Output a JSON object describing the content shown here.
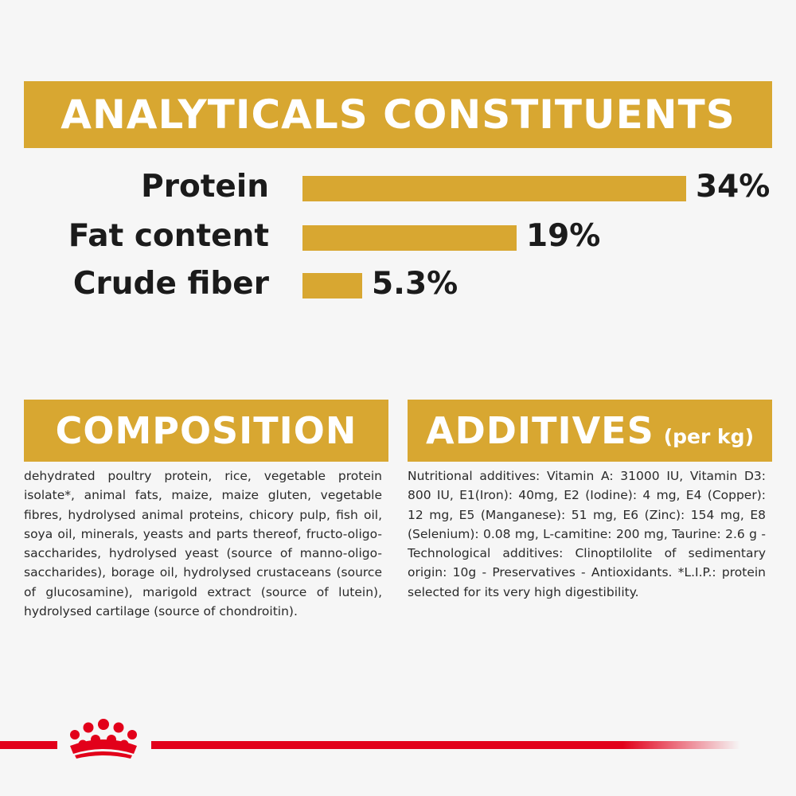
{
  "analytics": {
    "title": "ANALYTICALS CONSTITUENTS",
    "max_percent": 34,
    "rows": [
      {
        "label": "Protein",
        "value": "34%",
        "percent": 34
      },
      {
        "label": "Fat content",
        "value": "19%",
        "percent": 19
      },
      {
        "label": "Crude fiber",
        "value": "5.3%",
        "percent": 5.3
      }
    ]
  },
  "composition": {
    "title": "COMPOSITION",
    "text": "dehydrated poultry protein, rice, vegetable protein isolate*, animal fats, maize, maize gluten, vegetable fibres, hydrolysed animal proteins, chicory pulp, fish oil, soya oil, minerals, yeasts and parts thereof, fructo-oligo-saccharides, hydrolysed yeast (source of manno-oligo-saccharides), borage oil, hydrolysed crustaceans (source of glucosamine), marigold extract (source of lutein), hydrolysed cartilage (source of chondroitin)."
  },
  "additives": {
    "title": "ADDITIVES",
    "unit": "(per kg)",
    "text": "Nutritional additives: Vitamin A: 31000 IU, Vitamin D3: 800 IU, E1(Iron): 40mg, E2 (Iodine): 4 mg, E4 (Copper): 12 mg, E5 (Manganese): 51 mg, E6 (Zinc): 154 mg, E8 (Selenium): 0.08 mg, L-camitine: 200 mg, Taurine: 2.6 g - Technological additives: Clinoptilolite of sedimentary origin: 10g - Preservatives - Antioxidants. *L.I.P.: protein selected for its very high digestibility."
  },
  "brand": {
    "logo_icon": "royal-canin-crown-icon",
    "accent_color": "#e2001a",
    "gold_color": "#d8a731"
  }
}
